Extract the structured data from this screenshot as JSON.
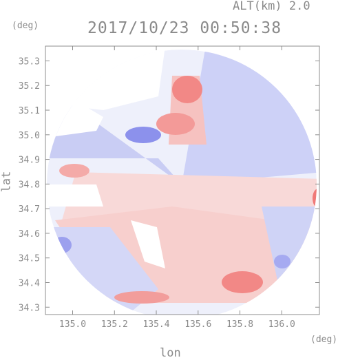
{
  "header": {
    "altitude": "ALT(km) 2.0",
    "datetime": "2017/10/23 00:50:38"
  },
  "axes": {
    "ylabel": "lat",
    "yunit": "(deg)",
    "xlabel": "lon",
    "xunit": "(deg)",
    "xlim": [
      134.87,
      136.18
    ],
    "ylim": [
      34.27,
      35.36
    ],
    "xticks": [
      "135.0",
      "135.2",
      "135.4",
      "135.6",
      "135.8",
      "136.0"
    ],
    "yticks": [
      "34.3",
      "34.4",
      "34.5",
      "34.6",
      "34.7",
      "34.8",
      "34.9",
      "35.0",
      "35.1",
      "35.2",
      "35.3"
    ]
  },
  "radar": {
    "center_lon": 135.52,
    "center_lat": 34.8,
    "colors": {
      "neg": "#8a8ef0",
      "pos": "#f27a78",
      "frame": "#8c8c8c"
    }
  }
}
